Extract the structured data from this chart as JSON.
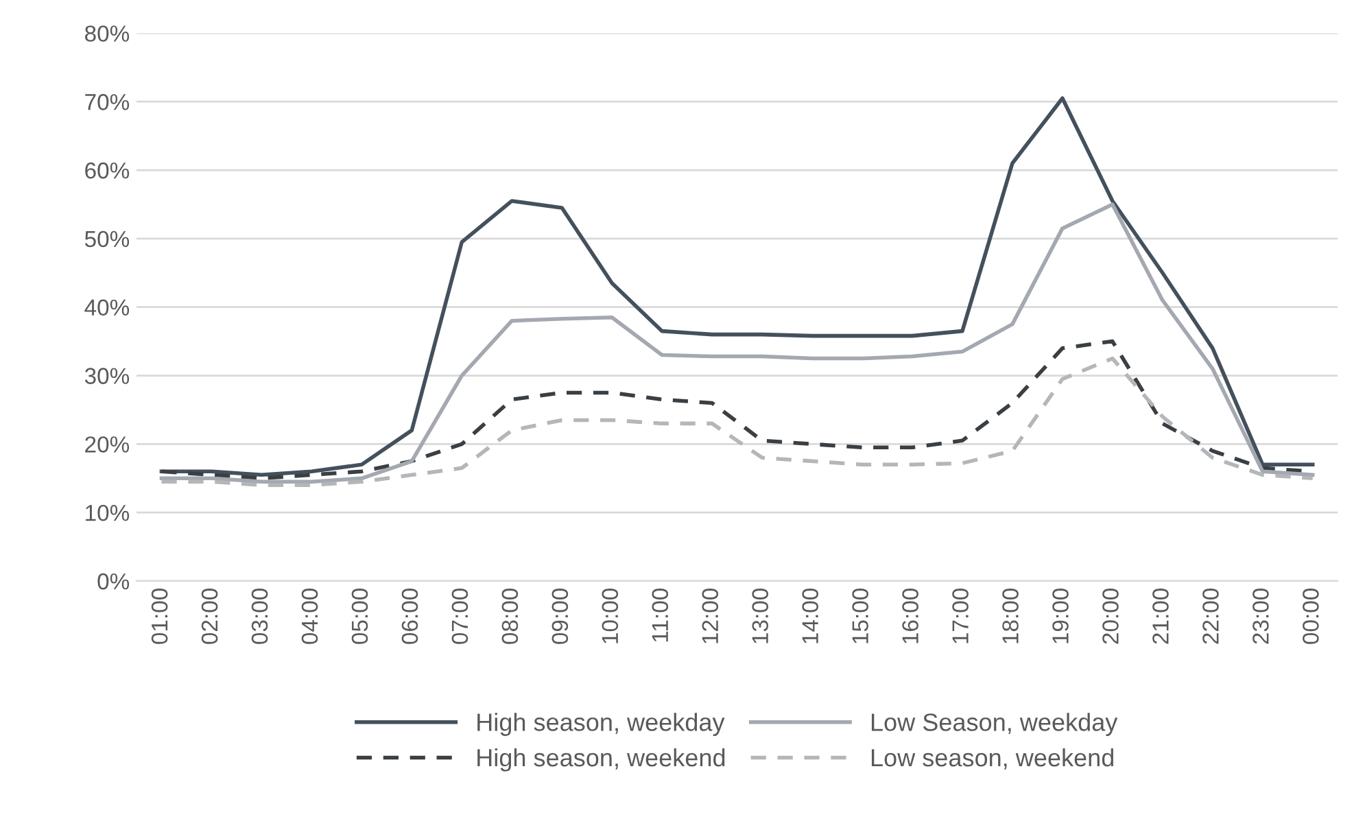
{
  "chart_data": {
    "type": "line",
    "categories": [
      "01:00",
      "02:00",
      "03:00",
      "04:00",
      "05:00",
      "06:00",
      "07:00",
      "08:00",
      "09:00",
      "10:00",
      "11:00",
      "12:00",
      "13:00",
      "14:00",
      "15:00",
      "16:00",
      "17:00",
      "18:00",
      "19:00",
      "20:00",
      "21:00",
      "22:00",
      "23:00",
      "00:00"
    ],
    "series": [
      {
        "name": "High season, weekday",
        "color": "#44505c",
        "line_style": "solid",
        "values": [
          16,
          16,
          15.5,
          16,
          17,
          22,
          49.5,
          55.5,
          54.5,
          43.5,
          36.5,
          36,
          36,
          35.8,
          35.8,
          35.8,
          36.5,
          61,
          70.5,
          55.5,
          45,
          34,
          17,
          17
        ]
      },
      {
        "name": "High season, weekend",
        "color": "#3a3f44",
        "line_style": "dashed",
        "values": [
          16,
          15.5,
          15,
          15.5,
          16,
          17.5,
          20,
          26.5,
          27.5,
          27.5,
          26.5,
          26,
          20.5,
          20,
          19.5,
          19.5,
          20.5,
          26,
          34,
          35,
          23,
          19,
          16.5,
          16
        ]
      },
      {
        "name": "Low Season, weekday",
        "color": "#a4a8b0",
        "line_style": "solid",
        "values": [
          15,
          15,
          14.5,
          14.5,
          15,
          17.5,
          30,
          38,
          38.3,
          38.5,
          33,
          32.8,
          32.8,
          32.5,
          32.5,
          32.8,
          33.5,
          37.5,
          51.5,
          55,
          41,
          31,
          16,
          15.5
        ]
      },
      {
        "name": "Low season, weekend",
        "color": "#b4b6ba",
        "line_style": "dashed",
        "values": [
          14.5,
          14.5,
          14,
          14,
          14.5,
          15.5,
          16.5,
          22,
          23.5,
          23.5,
          23,
          23,
          18,
          17.5,
          17,
          17,
          17.2,
          19,
          29.5,
          32.5,
          24,
          18,
          15.5,
          15
        ]
      }
    ],
    "ylim": [
      0,
      80
    ],
    "yticks": [
      {
        "value": 0,
        "label": "0%"
      },
      {
        "value": 10,
        "label": "10%"
      },
      {
        "value": 20,
        "label": "20%"
      },
      {
        "value": 30,
        "label": "30%"
      },
      {
        "value": 40,
        "label": "40%"
      },
      {
        "value": 50,
        "label": "50%"
      },
      {
        "value": 60,
        "label": "60%"
      },
      {
        "value": 70,
        "label": "70%"
      },
      {
        "value": 80,
        "label": "80%"
      }
    ],
    "grid": "y",
    "legend": "bottom"
  }
}
